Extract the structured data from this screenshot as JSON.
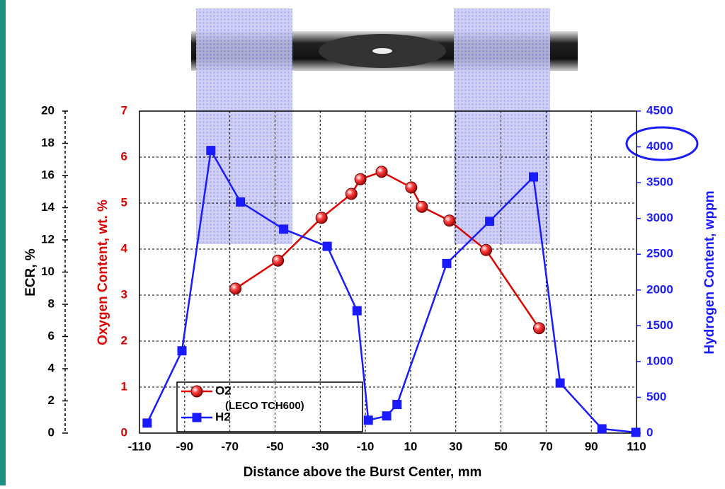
{
  "chart_data": {
    "type": "line",
    "xlabel": "Distance above the Burst Center, mm",
    "ylabel": "Oxygen Content, wt. %",
    "y2label": "Hydrogen Content, wppm",
    "y3label": "ECR, %",
    "annotation": "(LECO TCH600)",
    "xlim": [
      -110,
      110
    ],
    "xticks": [
      -110,
      -90,
      -70,
      -50,
      -30,
      -10,
      10,
      30,
      50,
      70,
      90,
      110
    ],
    "ylim": [
      0,
      7
    ],
    "yticks": [
      0,
      1,
      2,
      3,
      4,
      5,
      6,
      7
    ],
    "y2lim": [
      0,
      4500
    ],
    "y2ticks": [
      0,
      500,
      1000,
      1500,
      2000,
      2500,
      3000,
      3500,
      4000,
      4500
    ],
    "y3lim": [
      0,
      20
    ],
    "y3ticks": [
      0,
      2,
      4,
      6,
      8,
      10,
      12,
      14,
      16,
      18,
      20
    ],
    "grid": true,
    "legend": "lower left",
    "series": [
      {
        "name": "O2",
        "color": "#e00000",
        "marker": "circle",
        "x": [
          -67.5,
          -48.7,
          -29.4,
          -16.2,
          -12.2,
          -2.8,
          10.3,
          15,
          27.2,
          43.4,
          66.9
        ],
        "values": [
          3.14,
          3.75,
          4.68,
          5.2,
          5.52,
          5.68,
          5.34,
          4.92,
          4.62,
          3.98,
          2.28
        ]
      },
      {
        "name": "H2",
        "color": "#1a1aff",
        "marker": "square",
        "axis": "y2",
        "x": [
          -106.6,
          -91.2,
          -78.4,
          -65.3,
          -46.2,
          -26.9,
          -13.7,
          -8.7,
          -0.6,
          4,
          26,
          45,
          64.4,
          76.2,
          94.7,
          109.7
        ],
        "values": [
          140,
          1150,
          3950,
          3230,
          2850,
          2610,
          1710,
          180,
          240,
          400,
          2370,
          2960,
          3580,
          700,
          60,
          10
        ]
      }
    ]
  }
}
